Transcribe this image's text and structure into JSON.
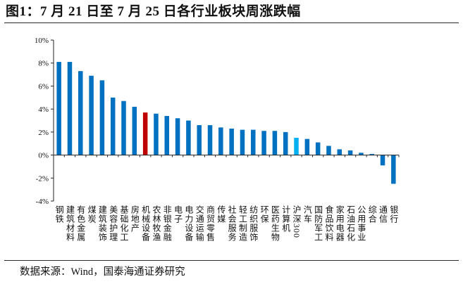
{
  "title": "图1：7 月 21 日至 7 月 25 日各行业板块周涨跌幅",
  "source": "数据来源：Wind，国泰海通证券研究",
  "colors": {
    "bar": "#0070c0",
    "axis": "#222222"
  },
  "chart_data": {
    "type": "bar",
    "categories": [
      "钢铁",
      "建筑材料",
      "有色金属",
      "煤炭",
      "建筑装饰",
      "美容护理",
      "基础化工",
      "房地产",
      "机械设备",
      "农林牧渔",
      "非银金融",
      "电子",
      "电力设备",
      "交通运输",
      "商贸零售",
      "传媒",
      "社会服务",
      "轻工制造",
      "纺织服饰",
      "环保",
      "医药生物",
      "计算机",
      "沪深300",
      "汽车",
      "国防军工",
      "食品饮料",
      "家用电器",
      "石油石化",
      "公用事业",
      "综合",
      "通信",
      "银行"
    ],
    "values": [
      8.1,
      8.1,
      7.3,
      6.9,
      6.5,
      5.0,
      4.7,
      4.2,
      3.7,
      3.6,
      3.4,
      3.2,
      3.0,
      2.6,
      2.6,
      2.4,
      2.3,
      2.2,
      2.2,
      2.1,
      2.1,
      2.0,
      1.5,
      1.4,
      1.1,
      0.8,
      0.5,
      0.4,
      0.2,
      0.1,
      -0.9,
      -2.5
    ],
    "highlight": {
      "机械设备": "#c00000",
      "沪深300": "#00b0f0"
    },
    "ylim": [
      -4,
      10
    ],
    "yticks": [
      -4,
      -2,
      0,
      2,
      4,
      6,
      8,
      10
    ],
    "ytick_labels": [
      "-4%",
      "-2%",
      "0%",
      "2%",
      "4%",
      "6%",
      "8%",
      "10%"
    ],
    "xlabel": "",
    "ylabel": "",
    "grid": false,
    "legend": "none"
  }
}
